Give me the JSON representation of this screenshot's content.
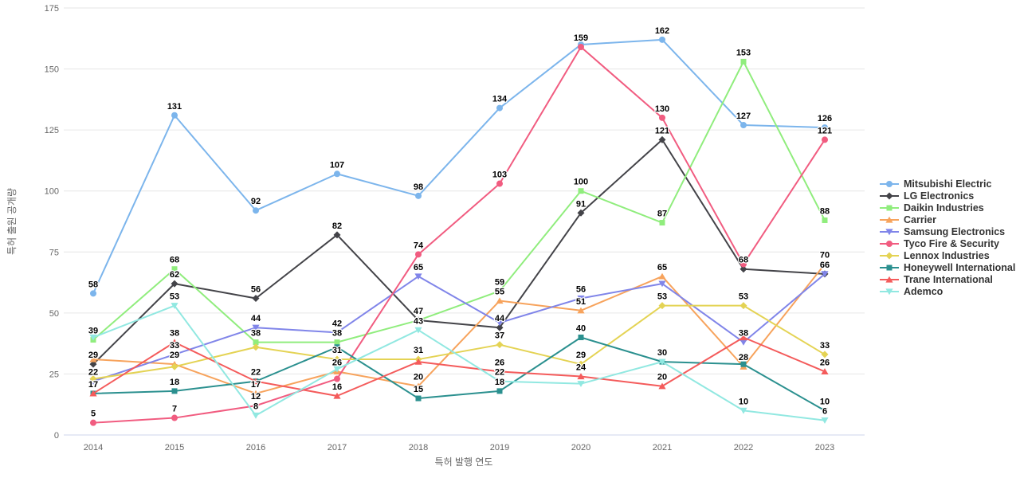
{
  "chart_data": {
    "type": "line",
    "title": "",
    "xlabel": "특허 발행 연도",
    "ylabel": "특허 출원 공개량",
    "categories": [
      2014,
      2015,
      2016,
      2017,
      2018,
      2019,
      2020,
      2021,
      2022,
      2023
    ],
    "ylim": [
      0,
      175
    ],
    "yticks": [
      0,
      25,
      50,
      75,
      100,
      125,
      150,
      175
    ],
    "grid": "horizontal-only",
    "legend_position": "right",
    "series": [
      {
        "name": "Mitsubishi Electric",
        "color": "#7cb5ec",
        "marker": "circle",
        "values": [
          58,
          131,
          92,
          107,
          98,
          134,
          160,
          162,
          127,
          126
        ],
        "label_visible": [
          1,
          1,
          1,
          1,
          1,
          1,
          0,
          1,
          1,
          1
        ]
      },
      {
        "name": "LG Electronics",
        "color": "#434348",
        "marker": "diamond",
        "values": [
          29,
          62,
          56,
          82,
          47,
          44,
          91,
          121,
          68,
          66
        ],
        "label_visible": [
          1,
          1,
          1,
          1,
          1,
          1,
          1,
          1,
          1,
          1
        ]
      },
      {
        "name": "Daikin Industries",
        "color": "#90ed7d",
        "marker": "square",
        "values": [
          39,
          68,
          38,
          38,
          47,
          59,
          100,
          87,
          153,
          88
        ],
        "label_visible": [
          1,
          1,
          1,
          1,
          0,
          1,
          1,
          1,
          1,
          1
        ]
      },
      {
        "name": "Carrier",
        "color": "#f7a35c",
        "marker": "triangle",
        "values": [
          31,
          29,
          17,
          26,
          20,
          55,
          51,
          65,
          28,
          70
        ],
        "label_visible": [
          0,
          1,
          1,
          1,
          1,
          1,
          1,
          1,
          1,
          1
        ]
      },
      {
        "name": "Samsung Electronics",
        "color": "#8085e9",
        "marker": "triangle-down",
        "values": [
          22,
          33,
          44,
          42,
          65,
          46,
          56,
          62,
          38,
          66
        ],
        "label_visible": [
          1,
          1,
          1,
          1,
          1,
          0,
          1,
          0,
          1,
          0
        ]
      },
      {
        "name": "Tyco Fire & Security",
        "color": "#f15c80",
        "marker": "circle",
        "values": [
          5,
          7,
          12,
          23,
          74,
          103,
          159,
          130,
          70,
          121
        ],
        "label_visible": [
          1,
          1,
          1,
          0,
          1,
          1,
          1,
          1,
          0,
          1
        ]
      },
      {
        "name": "Lennox Industries",
        "color": "#e4d354",
        "marker": "diamond",
        "values": [
          23,
          28,
          36,
          31,
          31,
          37,
          29,
          53,
          53,
          33
        ],
        "label_visible": [
          0,
          0,
          0,
          1,
          1,
          1,
          1,
          1,
          1,
          1
        ]
      },
      {
        "name": "Honeywell International",
        "color": "#2b908f",
        "marker": "square",
        "values": [
          17,
          18,
          22,
          36,
          15,
          18,
          40,
          30,
          29,
          10
        ],
        "label_visible": [
          0,
          1,
          0,
          0,
          1,
          1,
          1,
          1,
          0,
          1
        ]
      },
      {
        "name": "Trane International",
        "color": "#f45b5b",
        "marker": "triangle",
        "values": [
          17,
          38,
          22,
          16,
          30,
          26,
          24,
          20,
          40,
          26
        ],
        "label_visible": [
          1,
          1,
          1,
          1,
          0,
          1,
          1,
          1,
          0,
          1
        ]
      },
      {
        "name": "Ademco",
        "color": "#91e8e1",
        "marker": "triangle-down",
        "values": [
          40,
          53,
          8,
          27,
          43,
          22,
          21,
          30,
          10,
          6
        ],
        "label_visible": [
          0,
          1,
          1,
          0,
          1,
          1,
          0,
          0,
          1,
          1
        ]
      }
    ]
  }
}
